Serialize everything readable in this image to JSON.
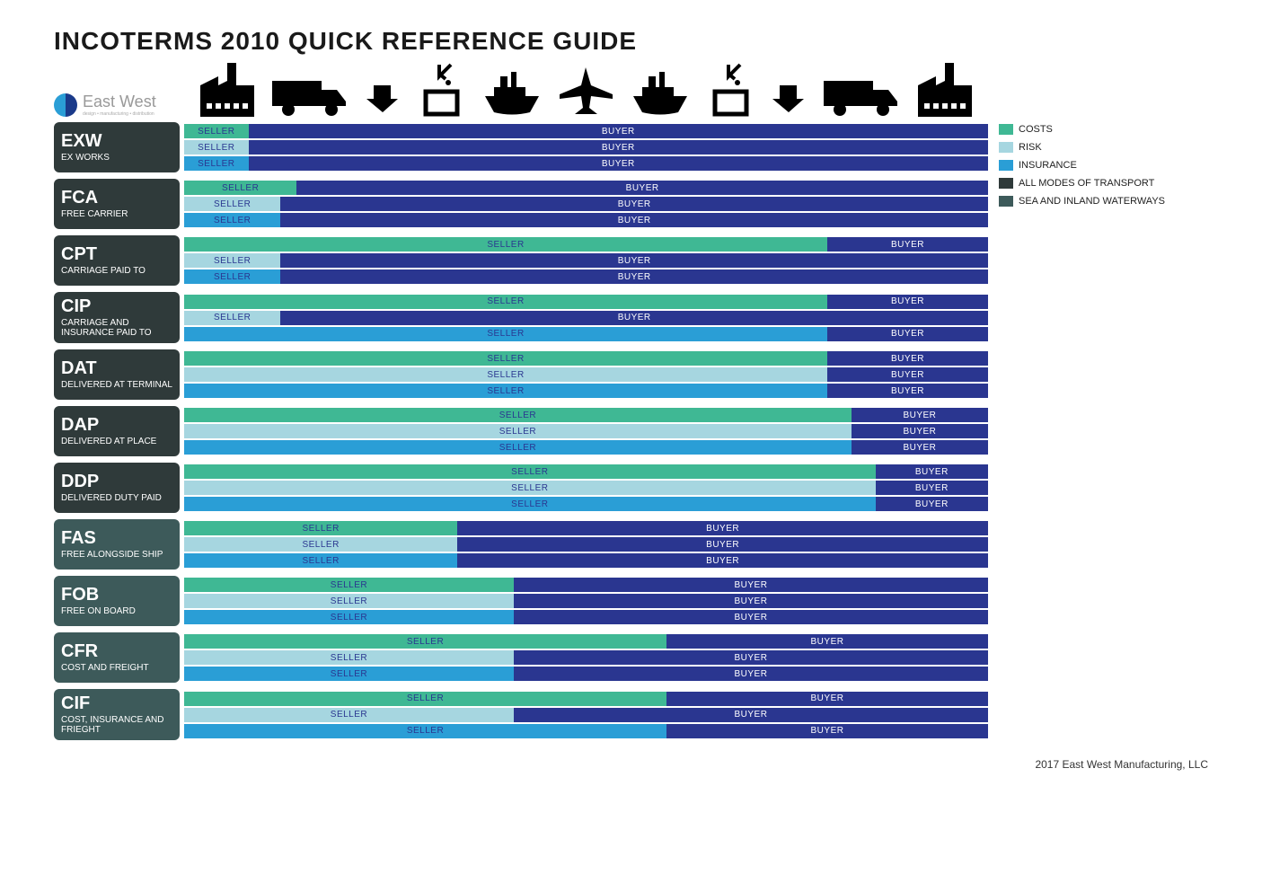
{
  "title": "INCOTERMS 2010 QUICK REFERENCE GUIDE",
  "brand": {
    "name": "East West",
    "tagline": "design • manufacturing • distribution"
  },
  "colors": {
    "costs": "#3fb894",
    "risk": "#a6d6e0",
    "insurance": "#2a9ed6",
    "buyer": "#2a3690",
    "allModesLabel": "#2f3a3a",
    "seaLabel": "#3d5a5a",
    "sellerTextOnCosts": "#2a3690",
    "sellerTextOnRisk": "#2a3690",
    "sellerTextOnIns": "#2a3690",
    "buyerText": "#ffffff"
  },
  "legend": [
    {
      "key": "costs",
      "label": "COSTS",
      "color": "#3fb894"
    },
    {
      "key": "risk",
      "label": "RISK",
      "color": "#a6d6e0"
    },
    {
      "key": "insurance",
      "label": "INSURANCE",
      "color": "#2a9ed6"
    },
    {
      "key": "allmodes",
      "label": "ALL MODES OF TRANSPORT",
      "color": "#2f3a3a"
    },
    {
      "key": "sea",
      "label": "SEA AND INLAND WATERWAYS",
      "color": "#3d5a5a"
    }
  ],
  "labels": {
    "seller": "SELLER",
    "buyer": "BUYER"
  },
  "terms": [
    {
      "code": "EXW",
      "name": "EX WORKS",
      "mode": "all",
      "bars": {
        "costs": 8,
        "risk": 8,
        "insurance": 8
      }
    },
    {
      "code": "FCA",
      "name": "FREE CARRIER",
      "mode": "all",
      "bars": {
        "costs": 14,
        "risk": 12,
        "insurance": 12
      }
    },
    {
      "code": "CPT",
      "name": "CARRIAGE PAID TO",
      "mode": "all",
      "bars": {
        "costs": 80,
        "risk": 12,
        "insurance": 12
      }
    },
    {
      "code": "CIP",
      "name": "CARRIAGE AND INSURANCE PAID TO",
      "mode": "all",
      "bars": {
        "costs": 80,
        "risk": 12,
        "insurance": 80
      }
    },
    {
      "code": "DAT",
      "name": "DELIVERED AT TERMINAL",
      "mode": "all",
      "bars": {
        "costs": 80,
        "risk": 80,
        "insurance": 80
      }
    },
    {
      "code": "DAP",
      "name": "DELIVERED AT PLACE",
      "mode": "all",
      "bars": {
        "costs": 83,
        "risk": 83,
        "insurance": 83
      }
    },
    {
      "code": "DDP",
      "name": "DELIVERED DUTY PAID",
      "mode": "all",
      "bars": {
        "costs": 86,
        "risk": 86,
        "insurance": 86
      }
    },
    {
      "code": "FAS",
      "name": "FREE ALONGSIDE SHIP",
      "mode": "sea",
      "bars": {
        "costs": 34,
        "risk": 34,
        "insurance": 34
      }
    },
    {
      "code": "FOB",
      "name": "FREE ON BOARD",
      "mode": "sea",
      "bars": {
        "costs": 41,
        "risk": 41,
        "insurance": 41
      }
    },
    {
      "code": "CFR",
      "name": "COST AND FREIGHT",
      "mode": "sea",
      "bars": {
        "costs": 60,
        "risk": 41,
        "insurance": 41
      }
    },
    {
      "code": "CIF",
      "name": "COST, INSURANCE AND FRIEGHT",
      "mode": "sea",
      "bars": {
        "costs": 60,
        "risk": 41,
        "insurance": 60
      }
    }
  ],
  "footer": "2017 East West Manufacturing, LLC"
}
